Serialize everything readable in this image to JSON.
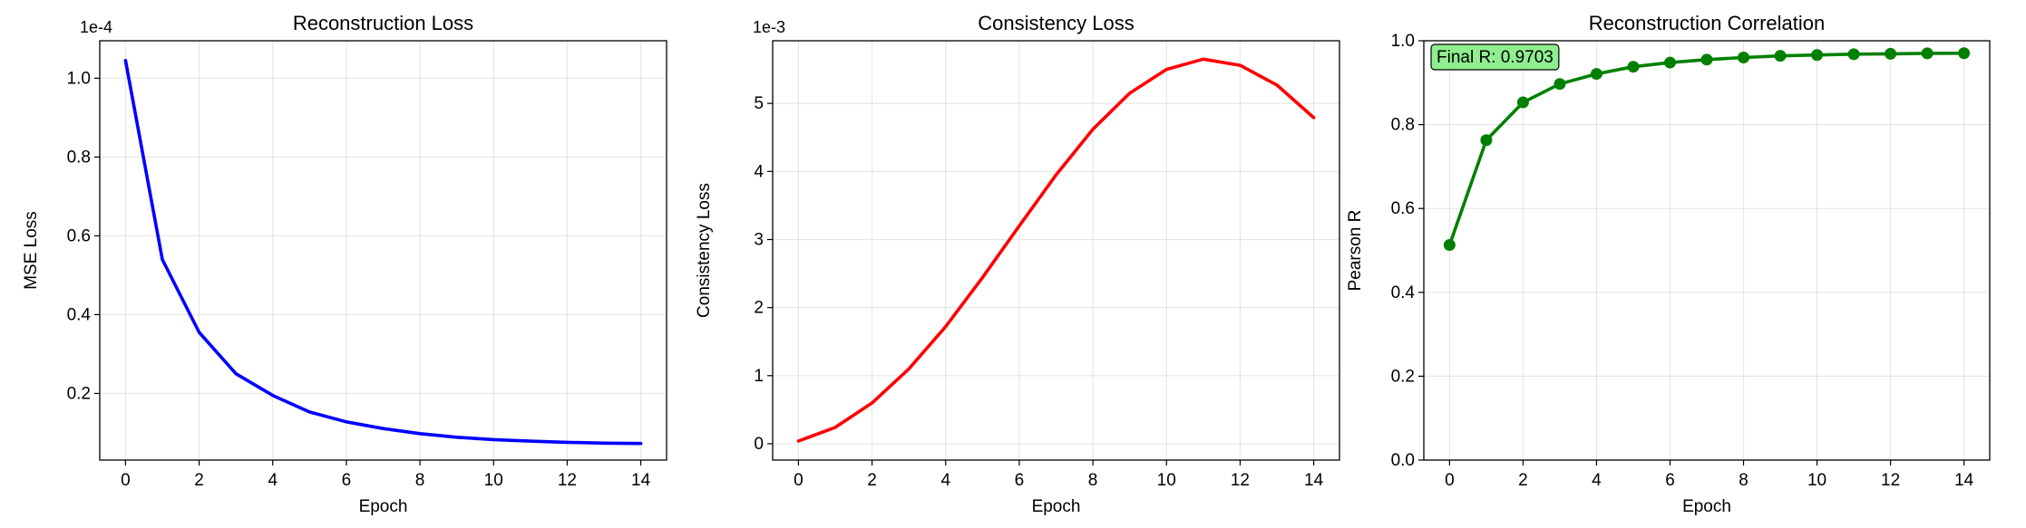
{
  "figure": {
    "background": "#ffffff"
  },
  "chart_data": [
    {
      "type": "line",
      "title": "Reconstruction Loss",
      "xlabel": "Epoch",
      "ylabel": "MSE Loss",
      "offset_text": "1e-4",
      "color": "#0000ff",
      "markers": false,
      "grid": true,
      "xlim": [
        -0.7,
        14.7
      ],
      "ylim": [
        0.031,
        1.095
      ],
      "xticks": [
        0,
        2,
        4,
        6,
        8,
        10,
        12,
        14
      ],
      "xtick_labels": [
        "0",
        "2",
        "4",
        "6",
        "8",
        "10",
        "12",
        "14"
      ],
      "yticks": [
        0.2,
        0.4,
        0.6,
        0.8,
        1.0
      ],
      "ytick_labels": [
        "0.2",
        "0.4",
        "0.6",
        "0.8",
        "1.0"
      ],
      "x": [
        0,
        1,
        2,
        3,
        4,
        5,
        6,
        7,
        8,
        9,
        10,
        11,
        12,
        13,
        14
      ],
      "y": [
        1.045,
        0.54,
        0.355,
        0.25,
        0.195,
        0.153,
        0.128,
        0.111,
        0.098,
        0.089,
        0.083,
        0.079,
        0.076,
        0.074,
        0.073
      ]
    },
    {
      "type": "line",
      "title": "Consistency Loss",
      "xlabel": "Epoch",
      "ylabel": "Consistency Loss",
      "offset_text": "1e-3",
      "color": "#ff0000",
      "markers": false,
      "grid": true,
      "xlim": [
        -0.7,
        14.7
      ],
      "ylim": [
        -0.24,
        5.92
      ],
      "xticks": [
        0,
        2,
        4,
        6,
        8,
        10,
        12,
        14
      ],
      "xtick_labels": [
        "0",
        "2",
        "4",
        "6",
        "8",
        "10",
        "12",
        "14"
      ],
      "yticks": [
        0,
        1,
        2,
        3,
        4,
        5
      ],
      "ytick_labels": [
        "0",
        "1",
        "2",
        "3",
        "4",
        "5"
      ],
      "x": [
        0,
        1,
        2,
        3,
        4,
        5,
        6,
        7,
        8,
        9,
        10,
        11,
        12,
        13,
        14
      ],
      "y": [
        0.04,
        0.24,
        0.6,
        1.1,
        1.72,
        2.44,
        3.2,
        3.95,
        4.62,
        5.15,
        5.5,
        5.65,
        5.56,
        5.27,
        4.79
      ]
    },
    {
      "type": "line",
      "title": "Reconstruction Correlation",
      "xlabel": "Epoch",
      "ylabel": "Pearson R",
      "offset_text": "",
      "color": "#008000",
      "markers": true,
      "grid": true,
      "xlim": [
        -0.7,
        14.7
      ],
      "ylim": [
        0.0,
        1.0
      ],
      "xticks": [
        0,
        2,
        4,
        6,
        8,
        10,
        12,
        14
      ],
      "xtick_labels": [
        "0",
        "2",
        "4",
        "6",
        "8",
        "10",
        "12",
        "14"
      ],
      "yticks": [
        0.0,
        0.2,
        0.4,
        0.6,
        0.8,
        1.0
      ],
      "ytick_labels": [
        "0.0",
        "0.2",
        "0.4",
        "0.6",
        "0.8",
        "1.0"
      ],
      "x": [
        0,
        1,
        2,
        3,
        4,
        5,
        6,
        7,
        8,
        9,
        10,
        11,
        12,
        13,
        14
      ],
      "y": [
        0.513,
        0.763,
        0.853,
        0.897,
        0.921,
        0.938,
        0.948,
        0.955,
        0.96,
        0.964,
        0.966,
        0.968,
        0.969,
        0.97,
        0.9703
      ],
      "annotation": {
        "text": "Final R: 0.9703",
        "background": "#90ee90",
        "position": "top-left"
      }
    }
  ]
}
